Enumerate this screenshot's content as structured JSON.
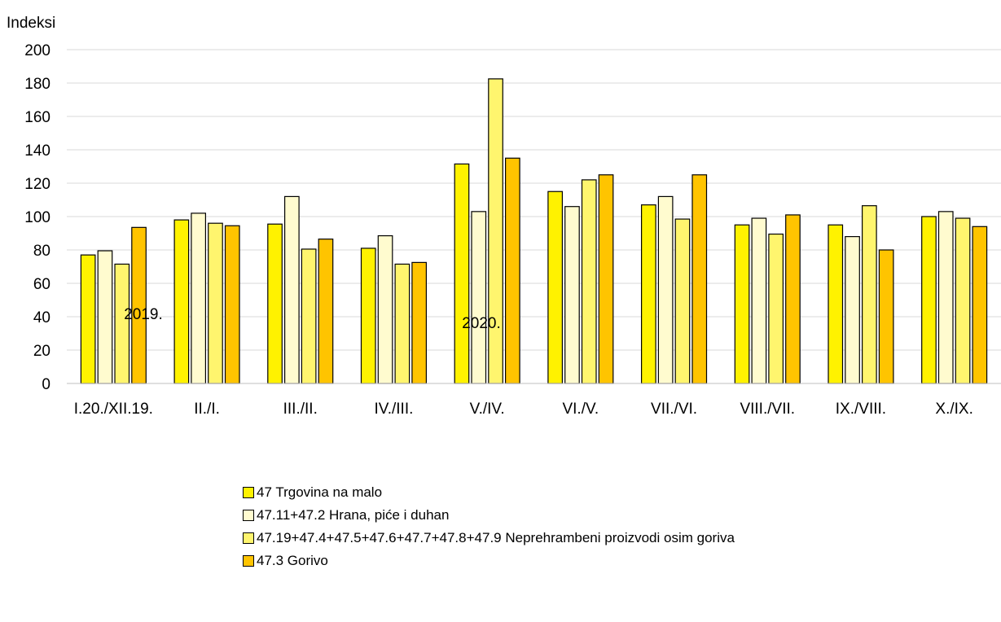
{
  "chart_data": {
    "type": "bar",
    "ylabel": "Indeksi",
    "ylim": [
      0,
      200
    ],
    "yticks": [
      "0",
      "20",
      "40",
      "60",
      "80",
      "100",
      "120",
      "140",
      "160",
      "180",
      "200"
    ],
    "categories": [
      "I.20./XII.19.",
      "II./I.",
      "III./II.",
      "IV./III.",
      "V./IV.",
      "VI./V.",
      "VII./VI.",
      "VIII./VII.",
      "IX./VIII.",
      "X./IX."
    ],
    "year_labels": [
      "2019.",
      "2020."
    ],
    "grid": true,
    "legend_position": "bottom",
    "series": [
      {
        "name": "47 Trgovina na malo",
        "color": "#FFF200",
        "values": [
          77,
          98,
          95.5,
          81,
          131.5,
          115,
          107,
          95,
          95,
          100
        ]
      },
      {
        "name": "47.11+47.2 Hrana, piće i duhan",
        "color": "#FFFBCF",
        "values": [
          79.5,
          102,
          112,
          88.5,
          103,
          106,
          112,
          99,
          88,
          103
        ]
      },
      {
        "name": "47.19+47.4+47.5+47.6+47.7+47.8+47.9 Neprehrambeni proizvodi osim goriva",
        "color": "#FFF56E",
        "values": [
          71.5,
          96,
          80.5,
          71.5,
          182.5,
          122,
          98.5,
          89.5,
          106.5,
          99
        ]
      },
      {
        "name": "47.3 Gorivo",
        "color": "#FFC400",
        "values": [
          93.5,
          94.5,
          86.5,
          72.5,
          135,
          125,
          125,
          101,
          80,
          94
        ]
      }
    ]
  }
}
